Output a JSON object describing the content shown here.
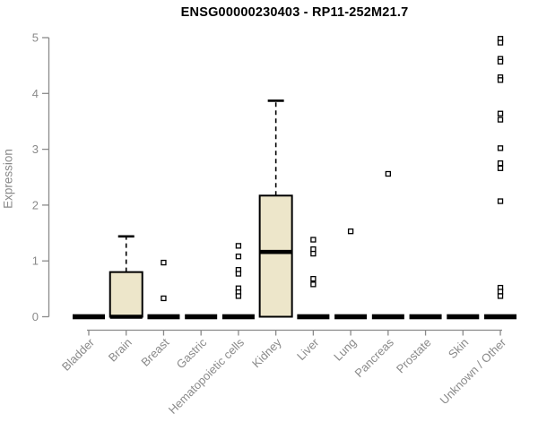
{
  "window": {
    "background": "#ffffff"
  },
  "chart_data": {
    "type": "boxplot",
    "title": "ENSG00000230403 - RP11-252M21.7",
    "xlabel": "",
    "ylabel": "Expression",
    "ylim": [
      0,
      5
    ],
    "yticks": [
      0,
      1,
      2,
      3,
      4,
      5
    ],
    "grid": false,
    "legend": "none",
    "axis_color": "#8a8a8a",
    "box_fill": "#EDE6CA",
    "box_stroke": "#000000",
    "outlier_marker": "open-square",
    "categories": [
      "Bladder",
      "Brain",
      "Breast",
      "Gastric",
      "Hematopoietic cells",
      "Kidney",
      "Liver",
      "Lung",
      "Pancreas",
      "Prostate",
      "Skin",
      "Unknown / Other"
    ],
    "boxes": [
      {
        "category": "Bladder",
        "q1": 0,
        "median": 0,
        "q3": 0,
        "whisker_low": 0,
        "whisker_high": 0,
        "outliers": []
      },
      {
        "category": "Brain",
        "q1": 0,
        "median": 0,
        "q3": 0.8,
        "whisker_low": 0,
        "whisker_high": 1.44,
        "outliers": []
      },
      {
        "category": "Breast",
        "q1": 0,
        "median": 0,
        "q3": 0,
        "whisker_low": 0,
        "whisker_high": 0,
        "outliers": [
          0.97,
          0.33
        ]
      },
      {
        "category": "Gastric",
        "q1": 0,
        "median": 0,
        "q3": 0,
        "whisker_low": 0,
        "whisker_high": 0,
        "outliers": []
      },
      {
        "category": "Hematopoietic cells",
        "q1": 0,
        "median": 0,
        "q3": 0,
        "whisker_low": 0,
        "whisker_high": 0,
        "outliers": [
          1.27,
          1.08,
          0.84,
          0.77,
          0.51,
          0.44,
          0.37
        ]
      },
      {
        "category": "Kidney",
        "q1": 0,
        "median": 1.16,
        "q3": 2.17,
        "whisker_low": 0,
        "whisker_high": 3.87,
        "outliers": []
      },
      {
        "category": "Liver",
        "q1": 0,
        "median": 0,
        "q3": 0,
        "whisker_low": 0,
        "whisker_high": 0,
        "outliers": [
          1.38,
          1.21,
          1.13,
          0.68,
          0.58
        ]
      },
      {
        "category": "Lung",
        "q1": 0,
        "median": 0,
        "q3": 0,
        "whisker_low": 0,
        "whisker_high": 0,
        "outliers": [
          1.53
        ]
      },
      {
        "category": "Pancreas",
        "q1": 0,
        "median": 0,
        "q3": 0,
        "whisker_low": 0,
        "whisker_high": 0,
        "outliers": [
          2.56
        ]
      },
      {
        "category": "Prostate",
        "q1": 0,
        "median": 0,
        "q3": 0,
        "whisker_low": 0,
        "whisker_high": 0,
        "outliers": []
      },
      {
        "category": "Skin",
        "q1": 0,
        "median": 0,
        "q3": 0,
        "whisker_low": 0,
        "whisker_high": 0,
        "outliers": []
      },
      {
        "category": "Unknown / Other",
        "q1": 0,
        "median": 0,
        "q3": 0,
        "whisker_low": 0,
        "whisker_high": 0,
        "outliers": [
          4.98,
          4.91,
          4.62,
          4.57,
          4.29,
          4.24,
          3.64,
          3.53,
          3.02,
          2.75,
          2.66,
          2.07,
          0.52,
          0.45,
          0.37
        ]
      }
    ]
  }
}
